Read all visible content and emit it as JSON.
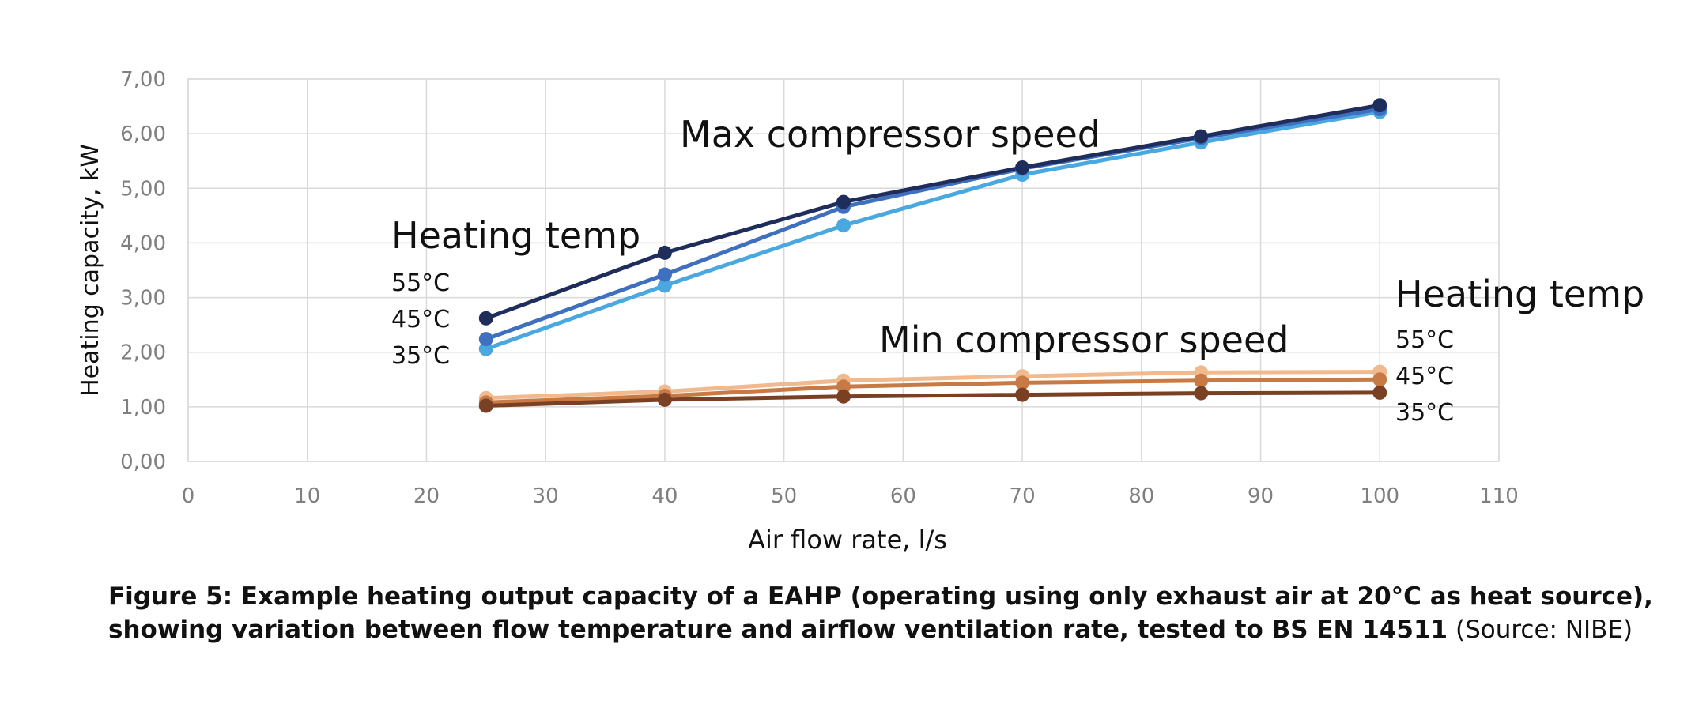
{
  "chart_data": {
    "type": "line",
    "xlabel": "Air flow rate, l/s",
    "ylabel": "Heating capacity, kW",
    "xlim": [
      0,
      110
    ],
    "ylim": [
      0,
      7
    ],
    "x_ticks": [
      "0",
      "10",
      "20",
      "30",
      "40",
      "50",
      "60",
      "70",
      "80",
      "90",
      "100",
      "110"
    ],
    "y_ticks": [
      "0,00",
      "1,00",
      "2,00",
      "3,00",
      "4,00",
      "5,00",
      "6,00",
      "7,00"
    ],
    "grid": true,
    "x": [
      25,
      40,
      55,
      70,
      85,
      100
    ],
    "series": [
      {
        "name": "55°C",
        "group": "Max compressor speed",
        "color": "#1f2d5c",
        "values": [
          2.62,
          3.82,
          4.75,
          5.38,
          5.95,
          6.52
        ]
      },
      {
        "name": "45°C",
        "group": "Max compressor speed",
        "color": "#3f6fbf",
        "values": [
          2.24,
          3.42,
          4.66,
          5.36,
          5.92,
          6.45
        ]
      },
      {
        "name": "35°C",
        "group": "Max compressor speed",
        "color": "#4aa8e0",
        "values": [
          2.06,
          3.22,
          4.32,
          5.25,
          5.84,
          6.4
        ]
      },
      {
        "name": "55°C",
        "group": "Min compressor speed",
        "color": "#f0b98e",
        "values": [
          1.16,
          1.28,
          1.48,
          1.56,
          1.63,
          1.64
        ]
      },
      {
        "name": "45°C",
        "group": "Min compressor speed",
        "color": "#c77a45",
        "values": [
          1.08,
          1.2,
          1.37,
          1.44,
          1.48,
          1.5
        ]
      },
      {
        "name": "35°C",
        "group": "Min compressor speed",
        "color": "#7a4024",
        "values": [
          1.02,
          1.13,
          1.19,
          1.22,
          1.25,
          1.26
        ]
      }
    ],
    "annotations": {
      "max_title": "Max compressor speed",
      "min_title": "Min compressor speed",
      "heating_temp_left": "Heating temp",
      "heating_temp_right": "Heating temp",
      "left_labels": [
        "55°C",
        "45°C",
        "35°C"
      ],
      "right_labels": [
        "55°C",
        "45°C",
        "35°C"
      ]
    }
  },
  "caption": {
    "bold": "Figure 5: Example heating output capacity of a EAHP (operating using only exhaust air at 20°C as heat source), showing variation between flow temperature and airflow ventilation rate, tested to BS EN 14511",
    "source": "(Source: NIBE)"
  }
}
